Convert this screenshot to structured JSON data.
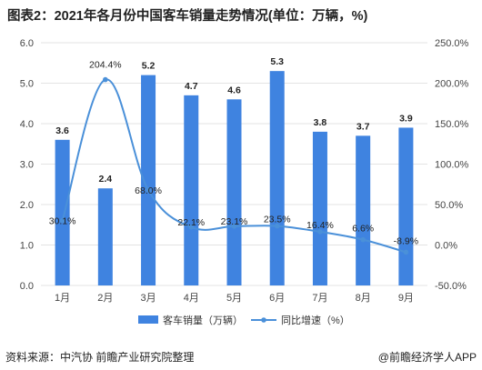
{
  "title": "图表2：2021年各月份中国客车销量走势情况(单位：万辆，%)",
  "source": "资料来源：中汽协 前瞻产业研究院整理",
  "brand": "@前瞻经济学人APP",
  "colors": {
    "bar": "#3f83e0",
    "line": "#4a90d9",
    "grid": "#e3e3e3"
  },
  "chart_data": {
    "type": "bar",
    "categories": [
      "1月",
      "2月",
      "3月",
      "4月",
      "5月",
      "6月",
      "7月",
      "8月",
      "9月"
    ],
    "series": [
      {
        "name": "客车销量（万辆）",
        "type": "bar",
        "axis": "left",
        "values": [
          3.6,
          2.4,
          5.2,
          4.7,
          4.6,
          5.3,
          3.8,
          3.7,
          3.9
        ],
        "labels": [
          "3.6",
          "2.4",
          "5.2",
          "4.7",
          "4.6",
          "5.3",
          "3.8",
          "3.7",
          "3.9"
        ]
      },
      {
        "name": "同比增速（%）",
        "type": "line",
        "axis": "right",
        "values": [
          30.1,
          204.4,
          68.0,
          22.1,
          23.1,
          23.5,
          16.4,
          6.6,
          -8.9
        ],
        "labels": [
          "30.1%",
          "204.4%",
          "68.0%",
          "22.1%",
          "23.1%",
          "23.5%",
          "16.4%",
          "6.6%",
          "-8.9%"
        ]
      }
    ],
    "y_left": {
      "ticks": [
        "0.0",
        "1.0",
        "2.0",
        "3.0",
        "4.0",
        "5.0",
        "6.0"
      ],
      "ylim": [
        0,
        6
      ]
    },
    "y_right": {
      "ticks": [
        "-50.0%",
        "0.0%",
        "50.0%",
        "100.0%",
        "150.0%",
        "200.0%",
        "250.0%"
      ],
      "ylim": [
        -50,
        250
      ]
    },
    "grid": true,
    "legend_position": "bottom"
  }
}
